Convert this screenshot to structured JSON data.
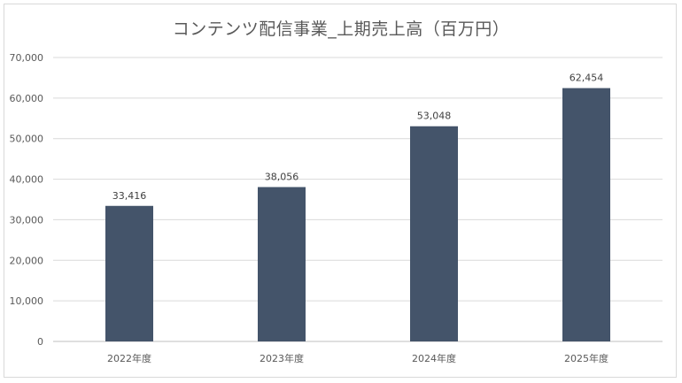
{
  "chart_data": {
    "type": "bar",
    "title": "コンテンツ配信事業_上期売上高（百万円）",
    "categories": [
      "2022年度",
      "2023年度",
      "2024年度",
      "2025年度"
    ],
    "values": [
      33416,
      38056,
      53048,
      62454
    ],
    "data_labels": [
      "33,416",
      "38,056",
      "53,048",
      "62,454"
    ],
    "y_ticks": [
      "0",
      "10,000",
      "20,000",
      "30,000",
      "40,000",
      "50,000",
      "60,000",
      "70,000"
    ],
    "ylim": [
      0,
      70000
    ],
    "grid": true,
    "legend": "none",
    "bar_color": "#44546a"
  }
}
